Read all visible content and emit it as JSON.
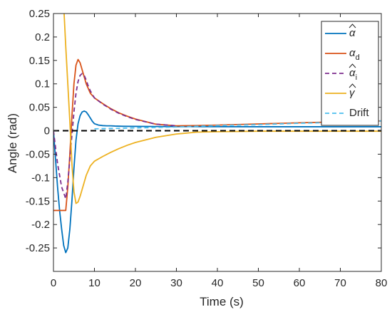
{
  "chart_data": {
    "type": "line",
    "xlabel": "Time (s)",
    "ylabel": "Angle (rad)",
    "xlim": [
      0,
      80
    ],
    "ylim": [
      -0.3,
      0.25
    ],
    "xticks": [
      0,
      10,
      20,
      30,
      40,
      50,
      60,
      70,
      80
    ],
    "yticks": [
      -0.25,
      -0.2,
      -0.15,
      -0.1,
      -0.05,
      0,
      0.05,
      0.1,
      0.15,
      0.2,
      0.25
    ],
    "ytick_labels": [
      "-0.25",
      "-0.2",
      "-0.15",
      "-0.1",
      "-0.05",
      "0",
      "0.05",
      "0.1",
      "0.15",
      "0.2",
      "0.25"
    ],
    "grid": false,
    "legend_position": "top-right",
    "reference_line": {
      "y": 0,
      "color": "#000000",
      "style": "dashed"
    },
    "series": [
      {
        "key": "alpha_hat",
        "symbol": "α",
        "accent": "hat",
        "subscript": "",
        "color": "#0072BD",
        "style": "solid",
        "x": [
          0,
          0.5,
          1,
          1.5,
          2,
          2.5,
          3,
          3.5,
          4,
          4.5,
          5,
          5.5,
          6,
          6.5,
          7,
          7.5,
          8,
          8.5,
          9,
          9.5,
          10,
          11,
          12,
          13,
          14,
          15,
          17,
          20,
          25,
          30,
          40,
          50,
          60,
          70,
          80
        ],
        "y": [
          0,
          -0.06,
          -0.12,
          -0.17,
          -0.21,
          -0.245,
          -0.26,
          -0.25,
          -0.21,
          -0.15,
          -0.08,
          -0.02,
          0.015,
          0.032,
          0.04,
          0.042,
          0.04,
          0.034,
          0.027,
          0.02,
          0.015,
          0.012,
          0.011,
          0.0105,
          0.0105,
          0.01,
          0.0095,
          0.0093,
          0.009,
          0.0088,
          0.0086,
          0.0085,
          0.0085,
          0.0085,
          0.0085
        ]
      },
      {
        "key": "alpha_d",
        "symbol": "α",
        "accent": "",
        "subscript": "d",
        "color": "#D95319",
        "style": "solid",
        "x": [
          0,
          3,
          3.5,
          4,
          4.5,
          5,
          5.5,
          6,
          6.5,
          7,
          7.5,
          8,
          9,
          10,
          12,
          14,
          16,
          18,
          20,
          25,
          30,
          35,
          40,
          50,
          60,
          70,
          80
        ],
        "y": [
          -0.17,
          -0.17,
          -0.12,
          -0.05,
          0.03,
          0.1,
          0.14,
          0.152,
          0.145,
          0.13,
          0.115,
          0.1,
          0.08,
          0.07,
          0.058,
          0.047,
          0.038,
          0.031,
          0.025,
          0.014,
          0.0105,
          0.011,
          0.012,
          0.0145,
          0.017,
          0.019,
          0.021
        ]
      },
      {
        "key": "alpha_i_hat",
        "symbol": "α",
        "accent": "hat",
        "subscript": "i",
        "color": "#7E2F8E",
        "style": "dashed",
        "x": [
          0,
          1,
          2,
          3,
          3.5,
          4,
          4.5,
          5,
          5.5,
          6,
          6.5,
          7,
          7.5,
          8,
          8.5,
          9,
          10,
          12,
          14,
          16,
          18,
          20,
          25,
          30
        ],
        "y": [
          0,
          -0.07,
          -0.12,
          -0.145,
          -0.11,
          -0.06,
          -0.01,
          0.04,
          0.08,
          0.105,
          0.118,
          0.122,
          0.118,
          0.108,
          0.095,
          0.085,
          0.07,
          0.057,
          0.046,
          0.037,
          0.03,
          0.024,
          0.014,
          0.0105
        ]
      },
      {
        "key": "gamma_hat",
        "symbol": "γ",
        "accent": "hat",
        "subscript": "",
        "color": "#EDB120",
        "style": "solid",
        "x": [
          2.6,
          3,
          3.5,
          4,
          4.5,
          5,
          5.5,
          6,
          6.5,
          7,
          7.5,
          8,
          9,
          10,
          12,
          14,
          16,
          18,
          20,
          25,
          30,
          35,
          40,
          50,
          60,
          70,
          80
        ],
        "y": [
          0.25,
          0.18,
          0.1,
          0.02,
          -0.07,
          -0.13,
          -0.155,
          -0.152,
          -0.14,
          -0.125,
          -0.11,
          -0.095,
          -0.075,
          -0.065,
          -0.055,
          -0.046,
          -0.038,
          -0.031,
          -0.025,
          -0.014,
          -0.007,
          -0.003,
          -0.002,
          -0.001,
          -0.001,
          -0.001,
          -0.001
        ]
      },
      {
        "key": "drift",
        "name": "Drift",
        "color": "#4DBEEE",
        "style": "dashed",
        "x": [
          10,
          20,
          30,
          40,
          50,
          60,
          70,
          80
        ],
        "y": [
          0.004,
          0.006,
          0.008,
          0.011,
          0.013,
          0.016,
          0.018,
          0.021
        ]
      }
    ]
  }
}
